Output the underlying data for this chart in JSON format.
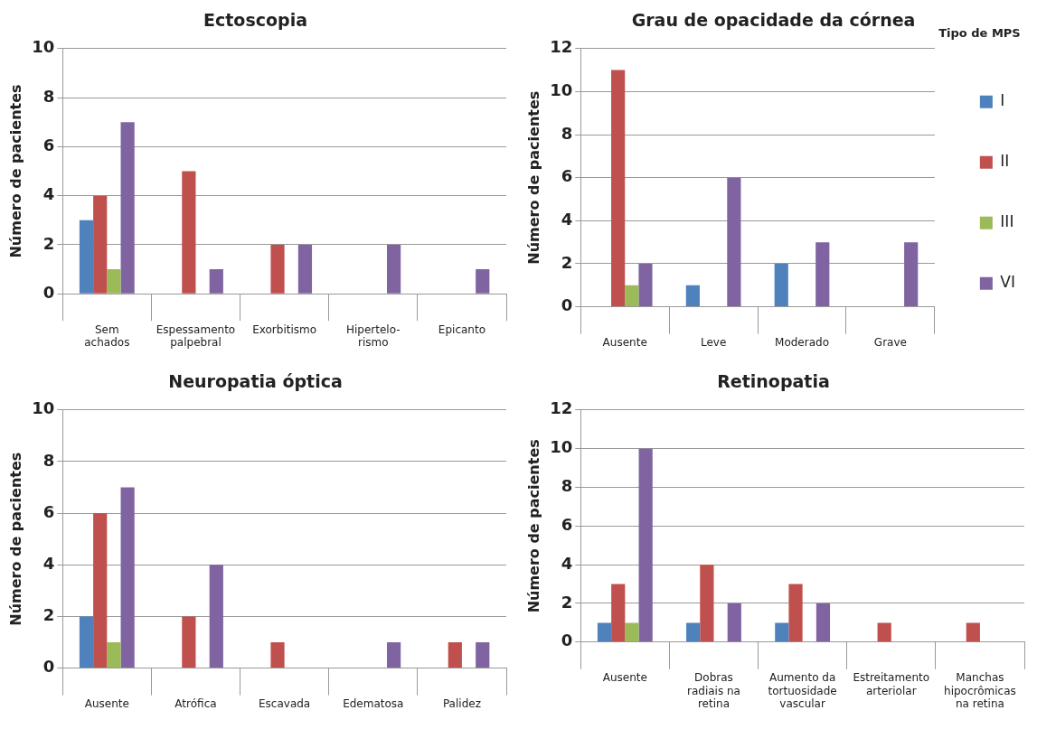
{
  "chart_data": [
    {
      "type": "bar",
      "title": "Ectoscopia",
      "ylabel": "Número de pacientes",
      "categories": [
        "Sem\nachados",
        "Espessamento\npalpebral",
        "Exorbitismo",
        "Hipertelo-\nrismo",
        "Epicanto"
      ],
      "series": [
        {
          "color": "#4f81bd",
          "values": [
            3,
            0,
            0,
            0,
            0
          ]
        },
        {
          "color": "#c0504d",
          "values": [
            4,
            5,
            2,
            0,
            0
          ]
        },
        {
          "color": "#9bbb59",
          "values": [
            1,
            0,
            0,
            0,
            0
          ]
        },
        {
          "color": "#8064a2",
          "values": [
            7,
            1,
            2,
            2,
            1
          ]
        }
      ],
      "ylim": [
        0,
        10
      ],
      "yticks": [
        0,
        2,
        4,
        6,
        8,
        10
      ],
      "grid": "y",
      "legend": false
    },
    {
      "type": "bar",
      "title": "Grau de opacidade da córnea",
      "ylabel": "Número de pacientes",
      "categories": [
        "Ausente",
        "Leve",
        "Moderado",
        "Grave"
      ],
      "series": [
        {
          "name": "I",
          "color": "#4f81bd",
          "values": [
            0,
            1,
            2,
            0
          ]
        },
        {
          "name": "II",
          "color": "#c0504d",
          "values": [
            11,
            0,
            0,
            0
          ]
        },
        {
          "name": "III",
          "color": "#9bbb59",
          "values": [
            1,
            0,
            0,
            0
          ]
        },
        {
          "name": "VI",
          "color": "#8064a2",
          "values": [
            2,
            6,
            3,
            3
          ]
        }
      ],
      "ylim": [
        0,
        12
      ],
      "yticks": [
        0,
        2,
        4,
        6,
        8,
        10,
        12
      ],
      "grid": "y",
      "legend": "right",
      "legend_title": "Tipo de MPS"
    },
    {
      "type": "bar",
      "title": "Neuropatia óptica",
      "ylabel": "Número de pacientes",
      "categories": [
        "Ausente",
        "Atrófica",
        "Escavada",
        "Edematosa",
        "Palidez"
      ],
      "series": [
        {
          "color": "#4f81bd",
          "values": [
            2,
            0,
            0,
            0,
            0
          ]
        },
        {
          "color": "#c0504d",
          "values": [
            6,
            2,
            1,
            0,
            1
          ]
        },
        {
          "color": "#9bbb59",
          "values": [
            1,
            0,
            0,
            0,
            0
          ]
        },
        {
          "color": "#8064a2",
          "values": [
            7,
            4,
            0,
            1,
            1
          ]
        }
      ],
      "ylim": [
        0,
        10
      ],
      "yticks": [
        0,
        2,
        4,
        6,
        8,
        10
      ],
      "grid": "y",
      "legend": false
    },
    {
      "type": "bar",
      "title": "Retinopatia",
      "ylabel": "Número de pacientes",
      "categories": [
        "Ausente",
        "Dobras\nradiais na\nretina",
        "Aumento da\ntortuosidade\nvascular",
        "Estreitamento\narteriolar",
        "Manchas\nhipocrômicas\nna retina"
      ],
      "series": [
        {
          "color": "#4f81bd",
          "values": [
            1,
            1,
            1,
            0,
            0
          ]
        },
        {
          "color": "#c0504d",
          "values": [
            3,
            4,
            3,
            1,
            1
          ]
        },
        {
          "color": "#9bbb59",
          "values": [
            1,
            0,
            0,
            0,
            0
          ]
        },
        {
          "color": "#8064a2",
          "values": [
            10,
            2,
            2,
            0,
            0
          ]
        }
      ],
      "ylim": [
        0,
        12
      ],
      "yticks": [
        0,
        2,
        4,
        6,
        8,
        10,
        12
      ],
      "grid": "y",
      "legend": false
    }
  ]
}
